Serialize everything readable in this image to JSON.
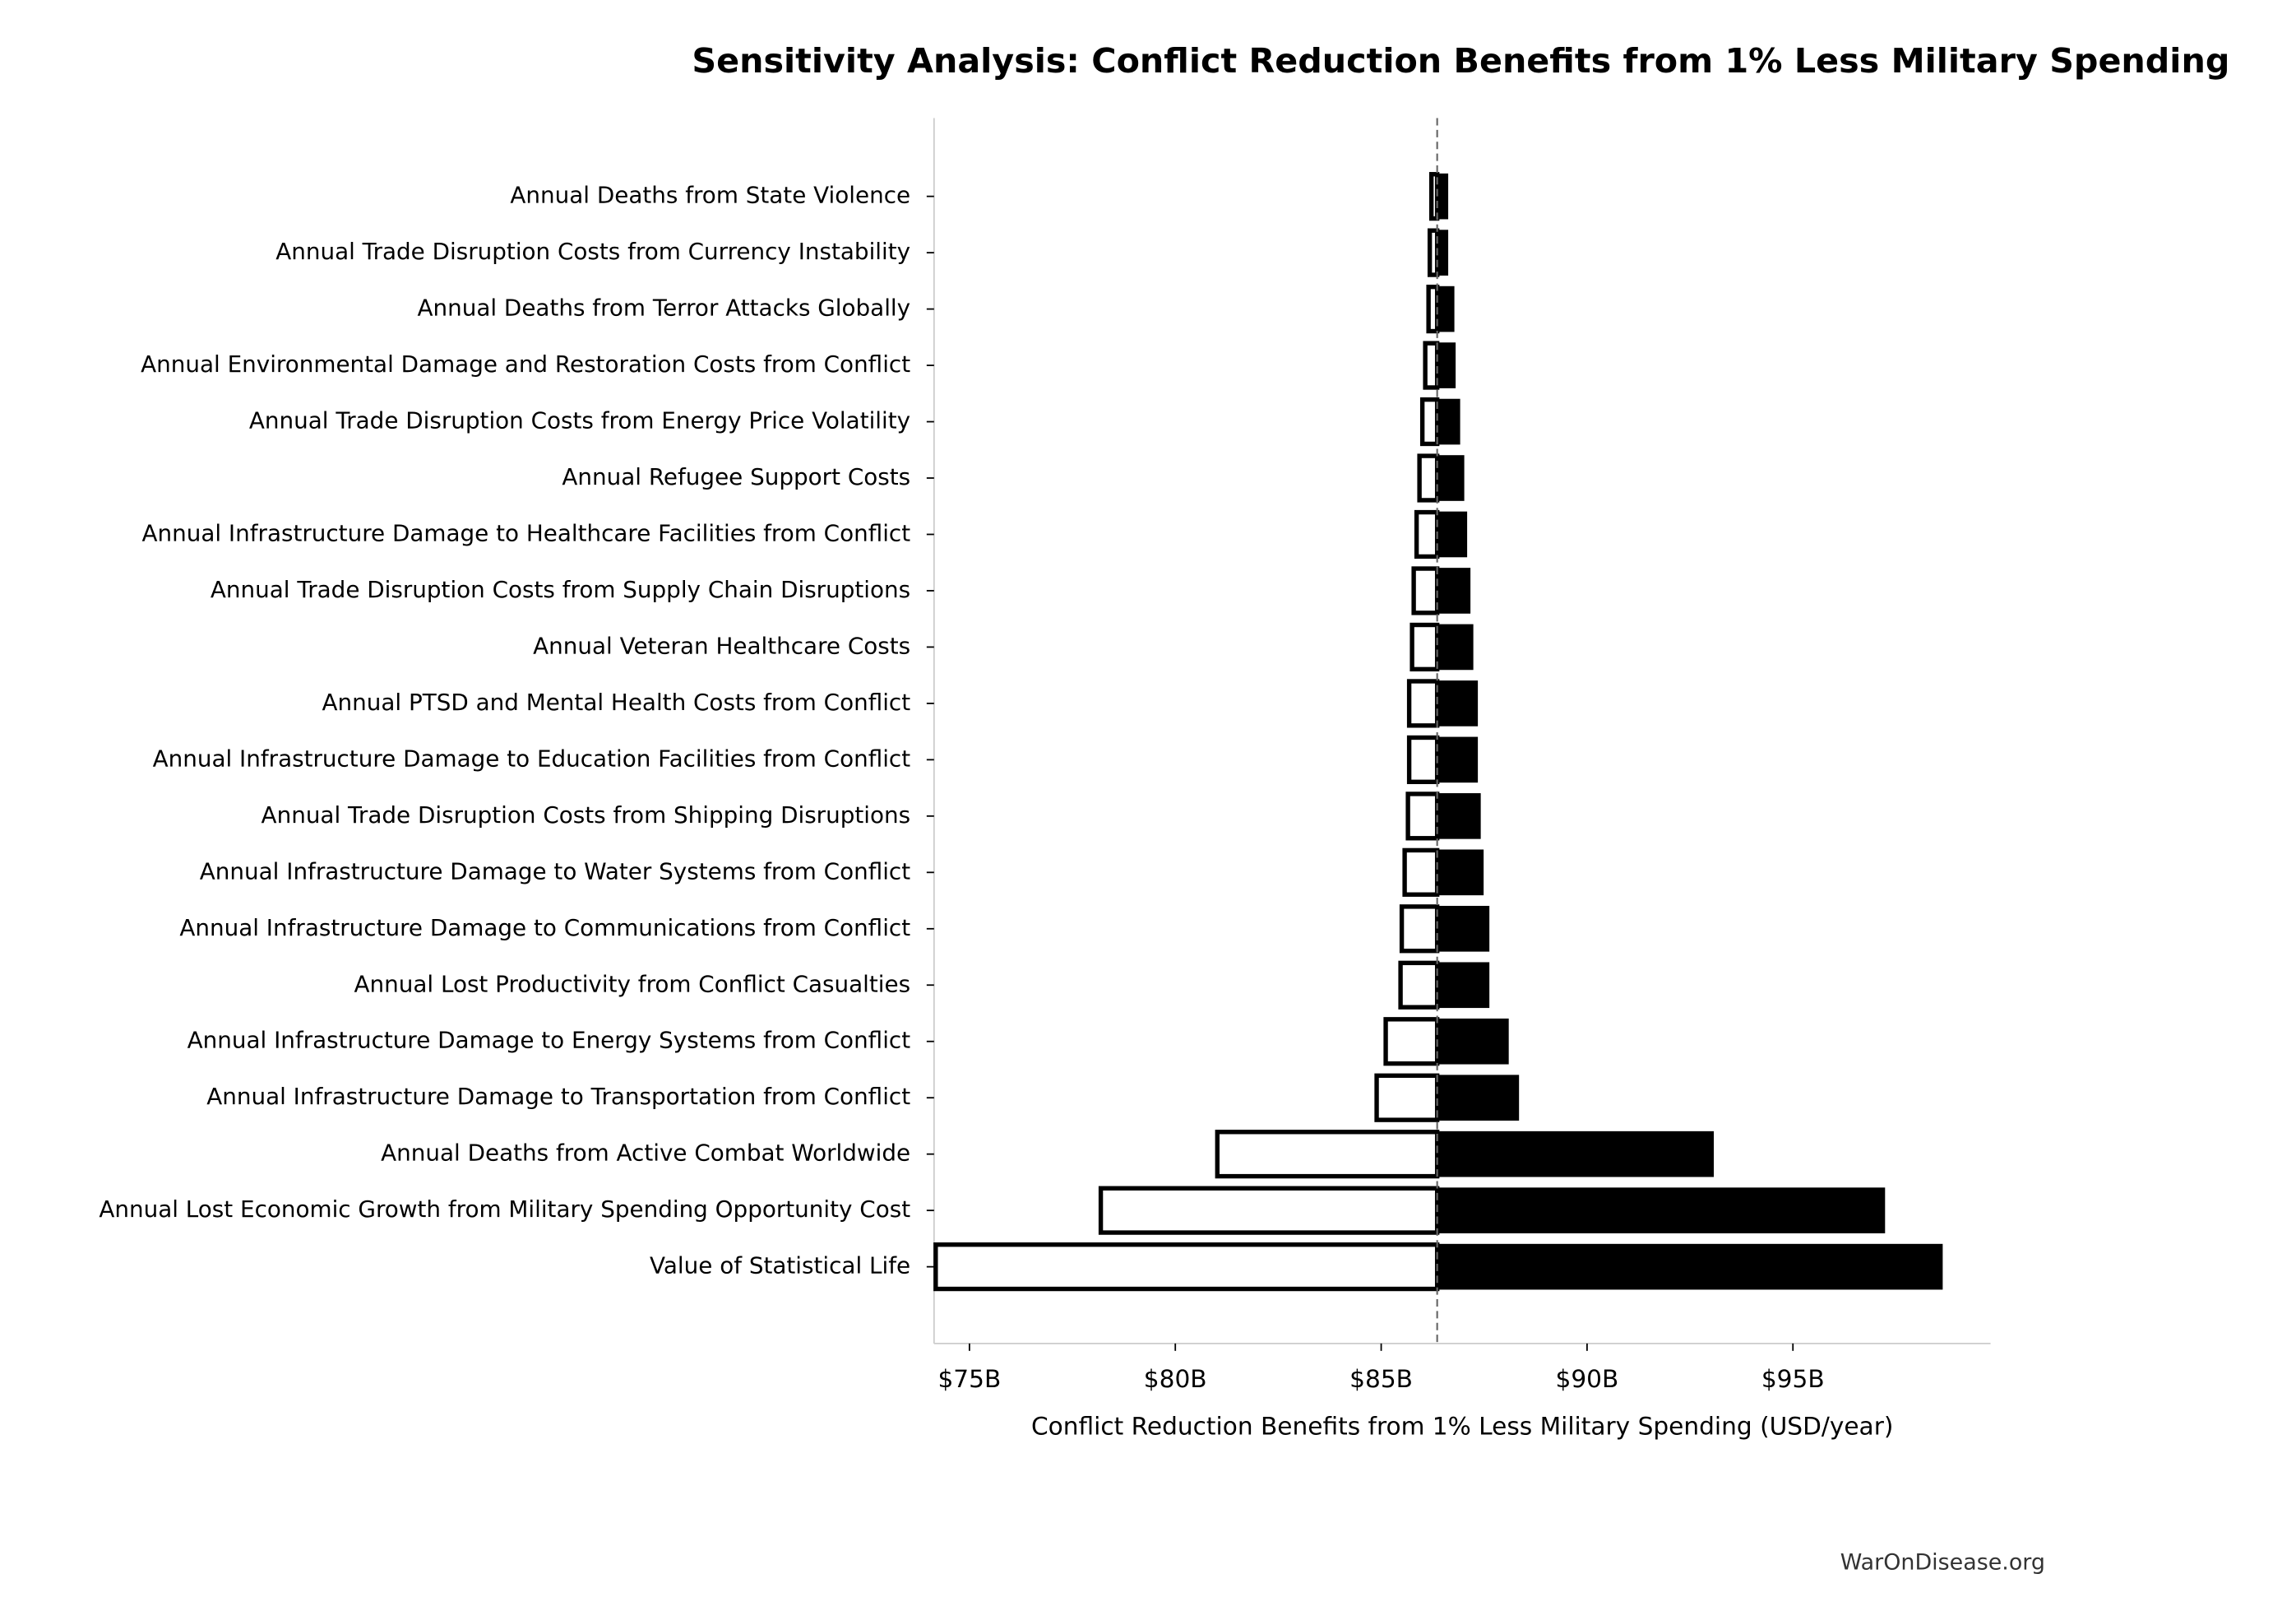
{
  "chart_data": {
    "type": "tornado",
    "title": "Sensitivity Analysis: Conflict Reduction Benefits from 1% Less Military Spending",
    "x_label": "Conflict Reduction Benefits from 1% Less Military Spending (USD/year)",
    "watermark": "WarOnDisease.org",
    "categories": [
      "Annual Deaths from State Violence",
      "Annual Trade Disruption Costs from Currency Instability",
      "Annual Deaths from Terror Attacks Globally",
      "Annual Environmental Damage and Restoration Costs from Conflict",
      "Annual Trade Disruption Costs from Energy Price Volatility",
      "Annual Refugee Support Costs",
      "Annual Infrastructure Damage to Healthcare Facilities from Conflict",
      "Annual Trade Disruption Costs from Supply Chain Disruptions",
      "Annual Veteran Healthcare Costs",
      "Annual PTSD and Mental Health Costs from Conflict",
      "Annual Infrastructure Damage to Education Facilities from Conflict",
      "Annual Trade Disruption Costs from Shipping Disruptions",
      "Annual Infrastructure Damage to Water Systems from Conflict",
      "Annual Infrastructure Damage to Communications from Conflict",
      "Annual Lost Productivity from Conflict Casualties",
      "Annual Infrastructure Damage to Energy Systems from Conflict",
      "Annual Infrastructure Damage to Transportation from Conflict",
      "Annual Deaths from Active Combat Worldwide",
      "Annual Lost Economic Growth from Military Spending Opportunity Cost",
      "Value of Statistical Life"
    ],
    "low_values": [
      86.22,
      86.18,
      86.15,
      86.07,
      86.0,
      85.93,
      85.86,
      85.79,
      85.75,
      85.68,
      85.68,
      85.65,
      85.57,
      85.5,
      85.47,
      85.11,
      84.89,
      81.02,
      78.19,
      74.18
    ],
    "high_values": [
      86.61,
      86.61,
      86.76,
      86.79,
      86.9,
      87.0,
      87.07,
      87.15,
      87.22,
      87.33,
      87.33,
      87.4,
      87.47,
      87.61,
      87.61,
      88.08,
      88.33,
      93.06,
      97.22,
      98.62
    ],
    "baseline": 86.36,
    "low_color": "#ffffff",
    "high_color": "#000000",
    "xlim": [
      74.14,
      99.8
    ],
    "xticks": [
      {
        "value": 75,
        "label": "$75B"
      },
      {
        "value": 80,
        "label": "$80B"
      },
      {
        "value": 85,
        "label": "$85B"
      },
      {
        "value": 90,
        "label": "$90B"
      },
      {
        "value": 95,
        "label": "$95B"
      }
    ]
  }
}
